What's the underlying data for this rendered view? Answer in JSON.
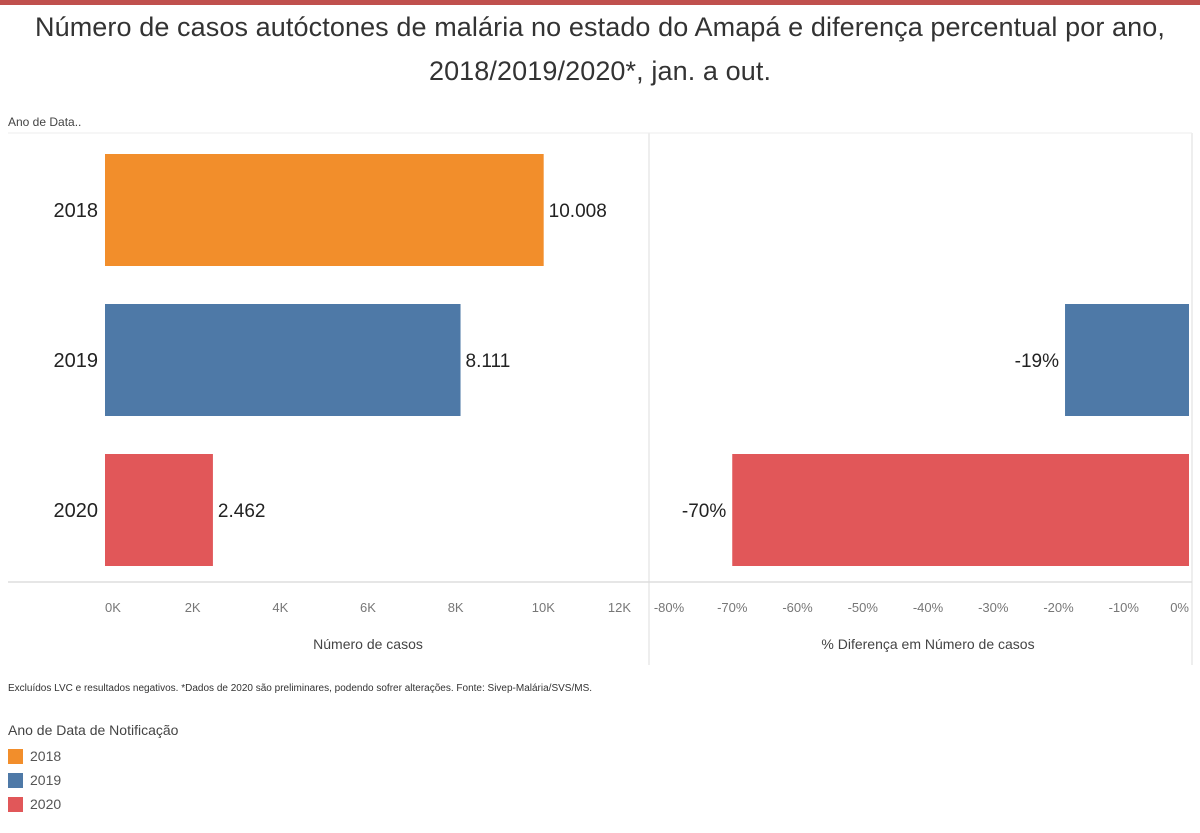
{
  "title": {
    "line1": "Número de casos autóctones de malária no estado do Amapá e diferença percentual por ano,",
    "line2": "2018/2019/2020*, jan. a out."
  },
  "row_header": "Ano de Data..",
  "footnote": "Excluídos LVC e resultados negativos. *Dados de 2020 são preliminares, podendo sofrer alterações. Fonte: Sivep-Malária/SVS/MS.",
  "legend": {
    "title": "Ano de Data de Notificação",
    "items": [
      {
        "label": "2018",
        "color": "#F28E2B"
      },
      {
        "label": "2019",
        "color": "#4E79A7"
      },
      {
        "label": "2020",
        "color": "#E15759"
      }
    ]
  },
  "colors": {
    "top_border": "#c0504d",
    "axis": "#cccccc",
    "text": "#222222"
  },
  "chart_data": [
    {
      "type": "bar",
      "orientation": "horizontal",
      "categories": [
        "2018",
        "2019",
        "2020"
      ],
      "values": [
        10008,
        8111,
        2462
      ],
      "value_labels": [
        "10.008",
        "8.111",
        "2.462"
      ],
      "colors": [
        "#F28E2B",
        "#4E79A7",
        "#E15759"
      ],
      "xlabel": "Número de casos",
      "xlim": [
        0,
        12000
      ],
      "ticks": [
        {
          "value": 0,
          "label": "0K"
        },
        {
          "value": 2000,
          "label": "2K"
        },
        {
          "value": 4000,
          "label": "4K"
        },
        {
          "value": 6000,
          "label": "6K"
        },
        {
          "value": 8000,
          "label": "8K"
        },
        {
          "value": 10000,
          "label": "10K"
        },
        {
          "value": 12000,
          "label": "12K"
        }
      ],
      "grid": false
    },
    {
      "type": "bar",
      "orientation": "horizontal",
      "categories": [
        "2018",
        "2019",
        "2020"
      ],
      "values": [
        null,
        -19,
        -70
      ],
      "value_labels": [
        "",
        "-19%",
        "-70%"
      ],
      "colors": [
        "#F28E2B",
        "#4E79A7",
        "#E15759"
      ],
      "xlabel": "% Diferença em Número de casos",
      "xlim": [
        -80,
        0
      ],
      "ticks": [
        {
          "value": -80,
          "label": "-80%"
        },
        {
          "value": -70,
          "label": "-70%"
        },
        {
          "value": -60,
          "label": "-60%"
        },
        {
          "value": -50,
          "label": "-50%"
        },
        {
          "value": -40,
          "label": "-40%"
        },
        {
          "value": -30,
          "label": "-30%"
        },
        {
          "value": -20,
          "label": "-20%"
        },
        {
          "value": -10,
          "label": "-10%"
        },
        {
          "value": 0,
          "label": "0%"
        }
      ],
      "grid": false
    }
  ]
}
